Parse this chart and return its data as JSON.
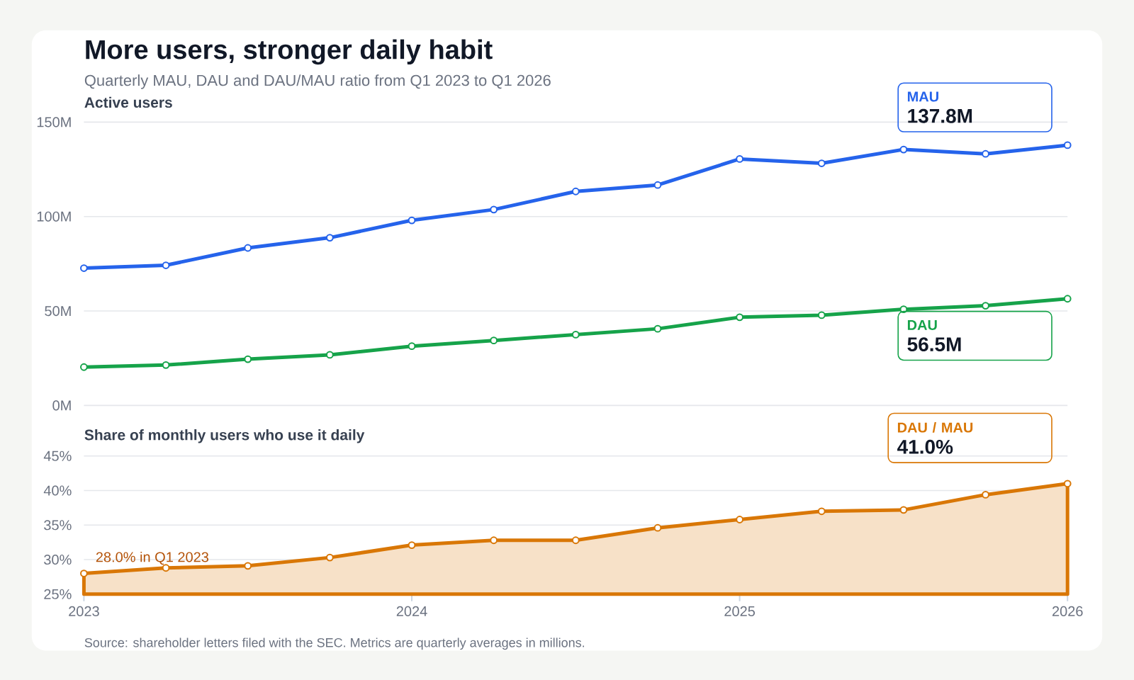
{
  "chart_data": [
    {
      "type": "line",
      "title": "More users, stronger daily habit",
      "subtitle": "Quarterly MAU, DAU and DAU/MAU ratio from Q1 2023 to Q1 2026",
      "ylabel": "Active users",
      "x": [
        "2023-01",
        "2023-04",
        "2023-07",
        "2023-10",
        "2024-01",
        "2024-04",
        "2024-07",
        "2024-10",
        "2025-01",
        "2025-04",
        "2025-07",
        "2025-10",
        "2026-01"
      ],
      "xlim": [
        "2023-01",
        "2026-01"
      ],
      "ylim": [
        0,
        150
      ],
      "yticks": [
        {
          "value": 0,
          "label": "0M"
        },
        {
          "value": 50,
          "label": "50M"
        },
        {
          "value": 100,
          "label": "100M"
        },
        {
          "value": 150,
          "label": "150M"
        }
      ],
      "grid": "y",
      "tick_labels": "y",
      "marker": "circle",
      "series": [
        {
          "name": "MAU",
          "color": "#2563eb",
          "values": [
            72.7,
            74.2,
            83.4,
            88.8,
            98.0,
            103.7,
            113.3,
            116.7,
            130.5,
            128.2,
            135.5,
            133.2,
            137.8
          ]
        },
        {
          "name": "DAU",
          "color": "#16a34a",
          "values": [
            20.3,
            21.4,
            24.5,
            26.8,
            31.4,
            34.4,
            37.5,
            40.6,
            46.7,
            47.8,
            50.9,
            52.8,
            56.5
          ]
        }
      ],
      "annotations": [
        "137.8M",
        "56.5M"
      ]
    },
    {
      "type": "area",
      "ylabel": "Share of monthly users who use it daily",
      "x": [
        "2023-01",
        "2023-04",
        "2023-07",
        "2023-10",
        "2024-01",
        "2024-04",
        "2024-07",
        "2024-10",
        "2025-01",
        "2025-04",
        "2025-07",
        "2025-10",
        "2026-01"
      ],
      "xlim": [
        "2023-01",
        "2026-01"
      ],
      "xticks": [
        {
          "value": "2023-01",
          "label": "2023"
        },
        {
          "value": "2024-01",
          "label": "2024"
        },
        {
          "value": "2025-01",
          "label": "2025"
        },
        {
          "value": "2026-01",
          "label": "2026"
        }
      ],
      "ylim": [
        25,
        45
      ],
      "yticks": [
        {
          "value": 25,
          "label": "25%"
        },
        {
          "value": 30,
          "label": "30%"
        },
        {
          "value": 35,
          "label": "35%"
        },
        {
          "value": 40,
          "label": "40%"
        },
        {
          "value": 45,
          "label": "45%"
        }
      ],
      "grid": "y",
      "marker": "circle",
      "series": [
        {
          "name": "DAU / MAU",
          "color": "#d97706",
          "values": [
            28.0,
            28.8,
            29.1,
            30.3,
            32.1,
            32.8,
            32.8,
            34.6,
            35.8,
            37.0,
            37.2,
            39.4,
            41.0
          ]
        }
      ],
      "annotations": [
        {
          "text": "28.0% in Q1 2023",
          "x": "2023-01",
          "y": 28.0
        },
        "41.0%",
        "Source: shareholder letters filed with the SEC. Metrics are quarterly averages in millions."
      ]
    }
  ]
}
